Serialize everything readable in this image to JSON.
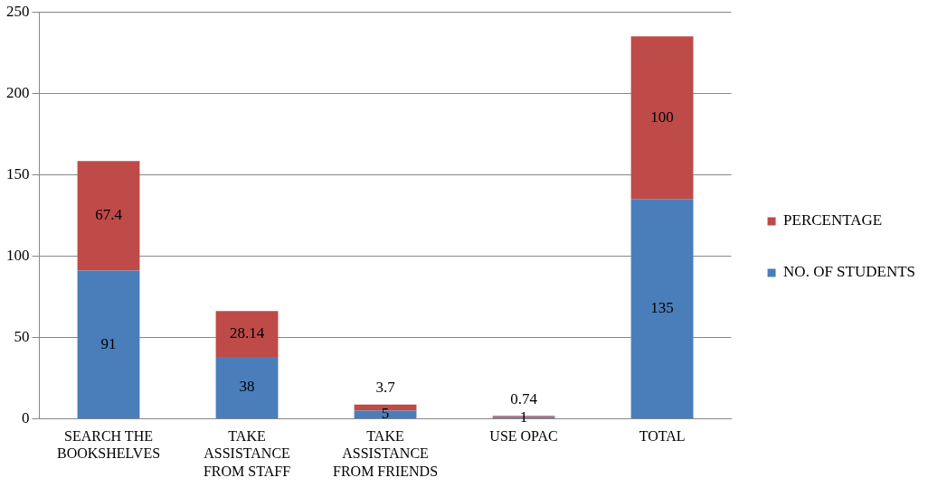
{
  "chart_data": {
    "type": "bar",
    "stacked": true,
    "categories": [
      "SEARCH THE BOOKSHELVES",
      "TAKE ASSISTANCE FROM STAFF",
      "TAKE ASSISTANCE FROM FRIENDS",
      "USE OPAC",
      "TOTAL"
    ],
    "series": [
      {
        "name": "NO. OF STUDENTS",
        "color": "#4a7ebb",
        "values": [
          91,
          38,
          5,
          1,
          135
        ]
      },
      {
        "name": "PERCENTAGE",
        "color": "#be4b48",
        "values": [
          67.4,
          28.14,
          3.7,
          0.74,
          100
        ]
      }
    ],
    "ylim": [
      0,
      250
    ],
    "yticks": [
      0,
      50,
      100,
      150,
      200,
      250
    ],
    "grid": "y",
    "legend": "right",
    "data_labels": true
  }
}
